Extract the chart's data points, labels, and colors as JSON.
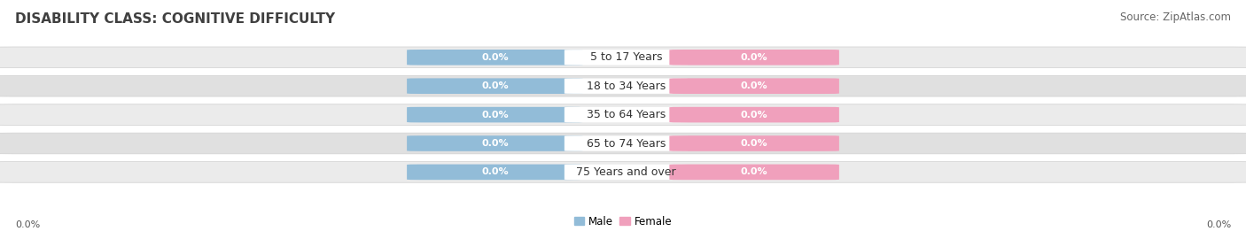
{
  "title": "DISABILITY CLASS: COGNITIVE DIFFICULTY",
  "source": "Source: ZipAtlas.com",
  "categories": [
    "5 to 17 Years",
    "18 to 34 Years",
    "35 to 64 Years",
    "65 to 74 Years",
    "75 Years and over"
  ],
  "male_values": [
    0.0,
    0.0,
    0.0,
    0.0,
    0.0
  ],
  "female_values": [
    0.0,
    0.0,
    0.0,
    0.0,
    0.0
  ],
  "male_color": "#92bcd8",
  "female_color": "#f0a0bc",
  "bar_bg_color": "#e4e4e4",
  "title_fontsize": 11,
  "source_fontsize": 8.5,
  "label_fontsize": 8,
  "category_fontsize": 9,
  "x_axis_label_left": "0.0%",
  "x_axis_label_right": "0.0%",
  "background_color": "#ffffff"
}
